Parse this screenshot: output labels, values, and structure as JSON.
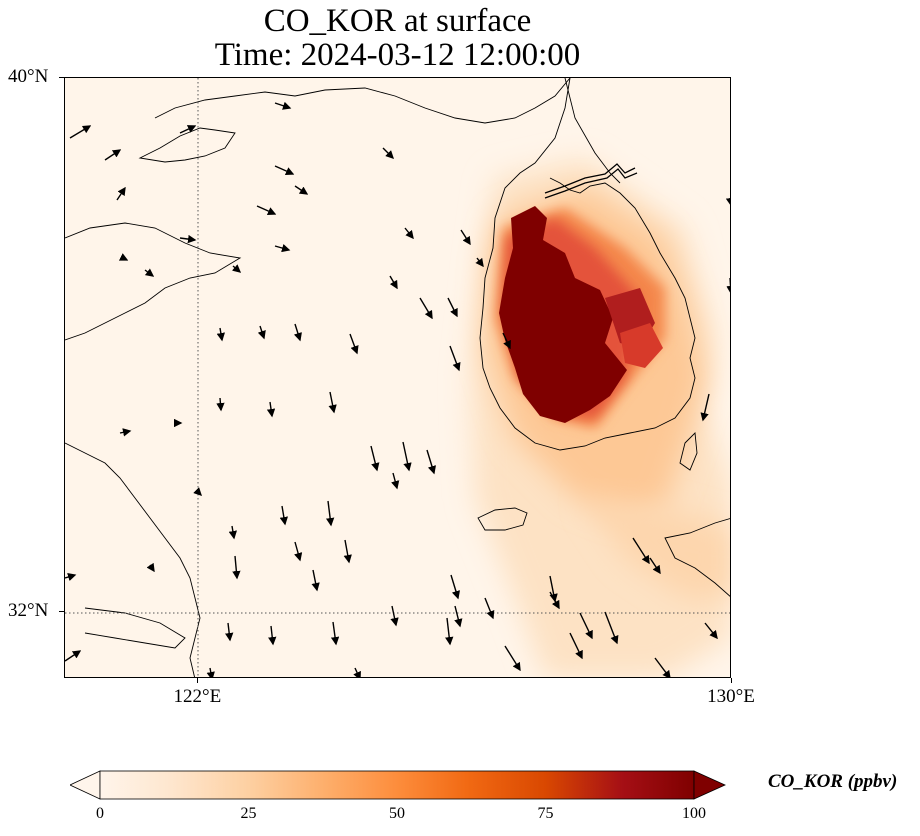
{
  "title": {
    "line1": "CO_KOR at surface",
    "line2": "Time: 2024-03-12 12:00:00"
  },
  "axes": {
    "lat_ticks": [
      {
        "label": "40°N",
        "value": 40
      },
      {
        "label": "32°N",
        "value": 32
      }
    ],
    "lon_ticks": [
      {
        "label": "122°E",
        "value": 122
      },
      {
        "label": "130°E",
        "value": 130
      }
    ],
    "lon_range": [
      120,
      130
    ],
    "lat_range": [
      31,
      40
    ],
    "gridlines": "dotted at 122°E and 32°N"
  },
  "colorbar": {
    "label": "CO_KOR (ppbv)",
    "ticks": [
      "0",
      "25",
      "50",
      "75",
      "100"
    ],
    "range": [
      0,
      100
    ],
    "extend": "both",
    "colormap": [
      "#fff5eb",
      "#fee6ce",
      "#fdd0a2",
      "#fdae6b",
      "#fd8d3c",
      "#f16913",
      "#d94801",
      "#a50f15",
      "#7f0000"
    ]
  },
  "chart_data": {
    "type": "heatmap",
    "variable": "CO_KOR",
    "units": "ppbv",
    "level": "surface",
    "time": "2024-03-12 12:00:00",
    "plume": [
      {
        "lon": 127.0,
        "lat": 37.2,
        "value": 100
      },
      {
        "lon": 127.2,
        "lat": 36.4,
        "value": 100
      },
      {
        "lon": 127.6,
        "lat": 35.6,
        "value": 100
      },
      {
        "lon": 128.2,
        "lat": 35.9,
        "value": 80
      },
      {
        "lon": 128.8,
        "lat": 36.6,
        "value": 55
      },
      {
        "lon": 129.0,
        "lat": 35.3,
        "value": 35
      },
      {
        "lon": 128.6,
        "lat": 34.2,
        "value": 20
      },
      {
        "lon": 129.8,
        "lat": 33.2,
        "value": 12
      }
    ],
    "wind": "surface wind vectors (mostly from north-northwest)"
  }
}
